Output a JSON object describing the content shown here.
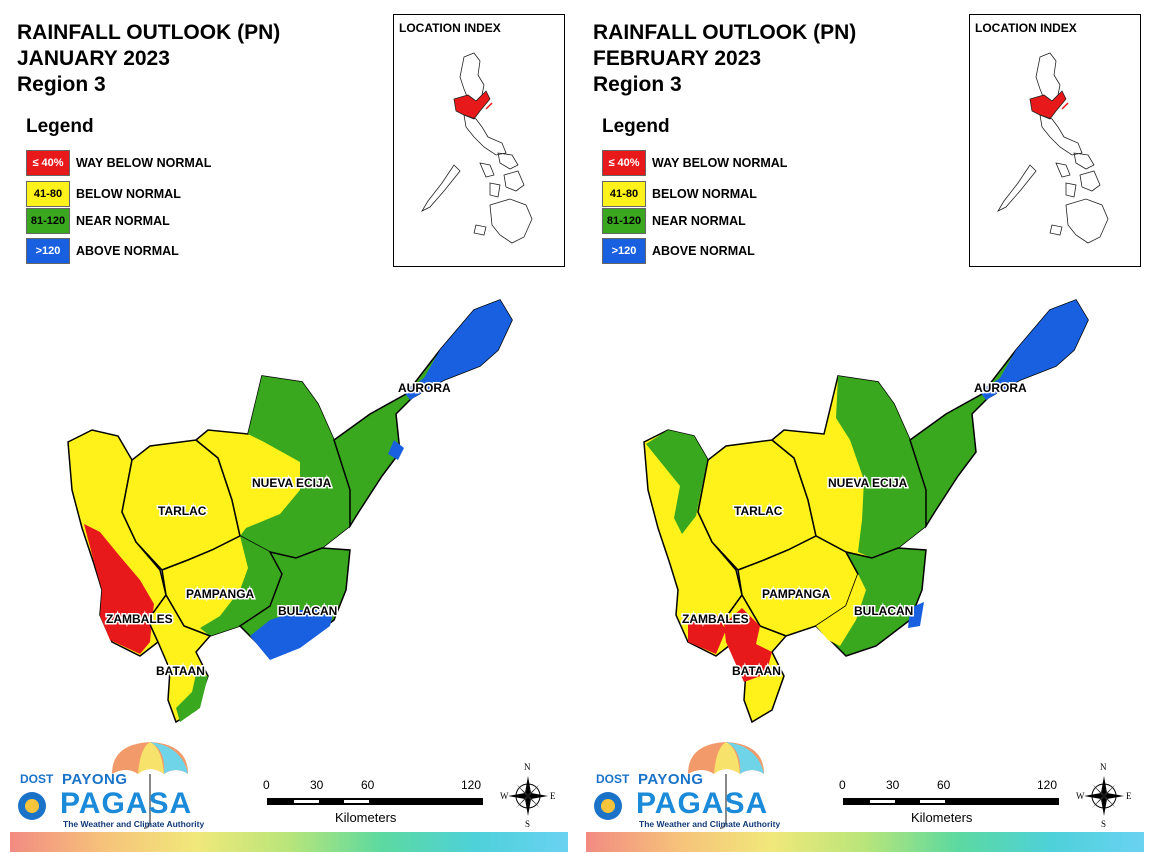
{
  "panels": [
    {
      "title_line1": "RAINFALL OUTLOOK (PN)",
      "title_line2": "JANUARY 2023",
      "title_line3": "Region 3",
      "provinces": {
        "aurora": "AURORA",
        "nueva_ecija": "NUEVA ECIJA",
        "tarlac": "TARLAC",
        "pampanga": "PAMPANGA",
        "bulacan": "BULACAN",
        "zambales": "ZAMBALES",
        "bataan": "BATAAN"
      }
    },
    {
      "title_line1": "RAINFALL OUTLOOK (PN)",
      "title_line2": "FEBRUARY 2023",
      "title_line3": "Region 3",
      "provinces": {
        "aurora": "AURORA",
        "nueva_ecija": "NUEVA ECIJA",
        "tarlac": "TARLAC",
        "pampanga": "PAMPANGA",
        "bulacan": "BULACAN",
        "zambales": "ZAMBALES",
        "bataan": "BATAAN"
      }
    }
  ],
  "legend": {
    "title": "Legend",
    "items": [
      {
        "range": "≤ 40%",
        "label": "WAY BELOW NORMAL",
        "color": "#e8191a",
        "text_color": "#ffffff"
      },
      {
        "range": "41-80",
        "label": "BELOW NORMAL",
        "color": "#fff21a",
        "text_color": "#000000"
      },
      {
        "range": "81-120",
        "label": "NEAR NORMAL",
        "color": "#3aa81f",
        "text_color": "#000000"
      },
      {
        "range": ">120",
        "label": "ABOVE NORMAL",
        "color": "#1860e0",
        "text_color": "#ffffff"
      }
    ]
  },
  "inset": {
    "title": "LOCATION INDEX",
    "highlight_color": "#e8191a"
  },
  "logo": {
    "dost": "DOST",
    "payong": "PAYONG",
    "pagasa": "PAGASA",
    "tagline": "The Weather and Climate Authority"
  },
  "scale": {
    "ticks": [
      "0",
      "30",
      "60",
      "120"
    ],
    "unit": "Kilometers"
  },
  "compass": {
    "n": "N",
    "s": "S",
    "e": "E",
    "w": "W"
  }
}
